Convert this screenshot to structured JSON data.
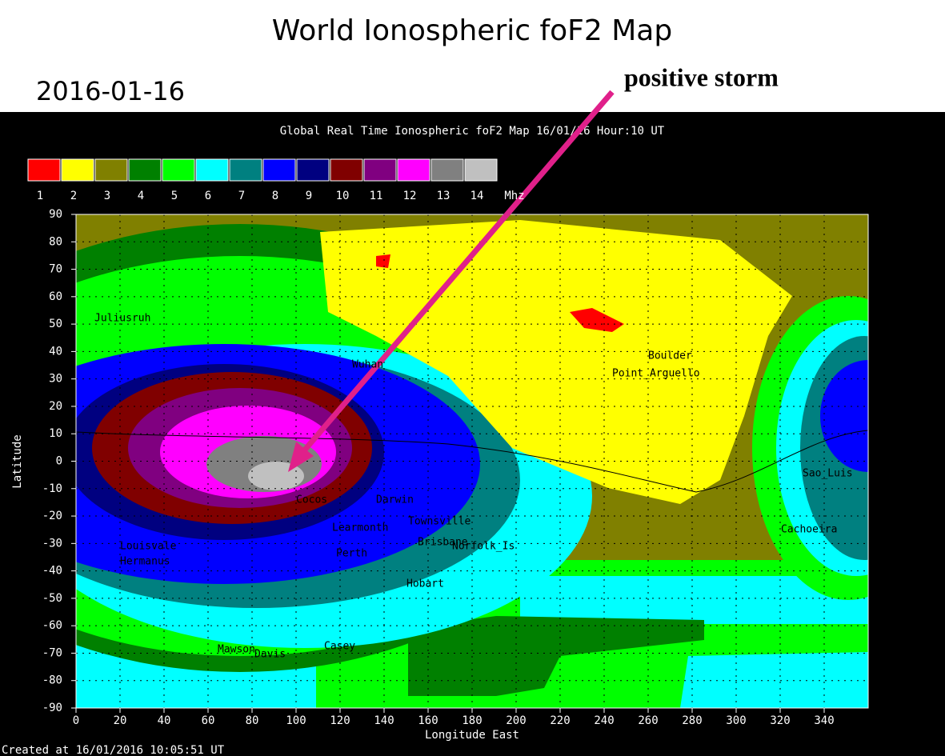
{
  "header": {
    "title": "World Ionospheric foF2 Map",
    "date": "2016-01-16",
    "annotation": "positive storm"
  },
  "map": {
    "title": "Global Real Time Ionospheric foF2 Map   16/01/16 Hour:10 UT",
    "legend": {
      "items": [
        {
          "label": "1",
          "color": "#ff0000"
        },
        {
          "label": "2",
          "color": "#ffff00"
        },
        {
          "label": "3",
          "color": "#808000"
        },
        {
          "label": "4",
          "color": "#008000"
        },
        {
          "label": "5",
          "color": "#00ff00"
        },
        {
          "label": "6",
          "color": "#00ffff"
        },
        {
          "label": "7",
          "color": "#008080"
        },
        {
          "label": "8",
          "color": "#0000ff"
        },
        {
          "label": "9",
          "color": "#000080"
        },
        {
          "label": "10",
          "color": "#800000"
        },
        {
          "label": "11",
          "color": "#800080"
        },
        {
          "label": "12",
          "color": "#ff00ff"
        },
        {
          "label": "13",
          "color": "#808080"
        },
        {
          "label": "14",
          "color": "#c0c0c0"
        }
      ],
      "unit": "Mhz"
    },
    "y_axis": {
      "label": "Latitude",
      "ticks": [
        "90",
        "80",
        "70",
        "60",
        "50",
        "40",
        "30",
        "20",
        "10",
        "0",
        "-10",
        "-20",
        "-30",
        "-40",
        "-50",
        "-60",
        "-70",
        "-80",
        "-90"
      ]
    },
    "x_axis": {
      "label": "Longitude East",
      "ticks": [
        "0",
        "20",
        "40",
        "60",
        "80",
        "100",
        "120",
        "140",
        "160",
        "180",
        "200",
        "220",
        "240",
        "260",
        "280",
        "300",
        "320",
        "340"
      ]
    },
    "stations": [
      "Juliusruh",
      "Wuhan",
      "Boulder",
      "Point_Arguello",
      "Cocos",
      "Darwin",
      "Learmonth",
      "Townsville",
      "Brisbane",
      "Norfolk_Is",
      "Perth",
      "Hobart",
      "Louisvale",
      "Hermanus",
      "Mawson",
      "Davis",
      "Casey",
      "Sao_Luis",
      "Cachoeira"
    ],
    "footer": "Created at 16/01/2016 10:05:51 UT"
  }
}
